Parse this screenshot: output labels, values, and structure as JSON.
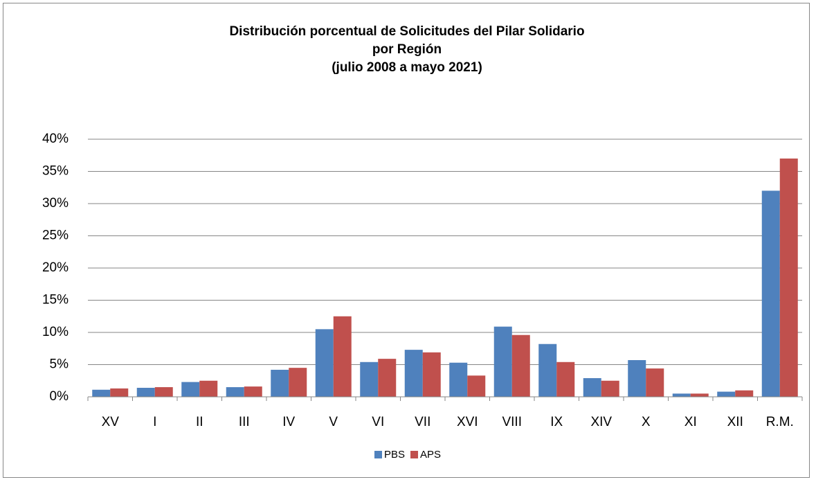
{
  "chart_data": {
    "type": "bar",
    "title": [
      "Distribución porcentual de Solicitudes del Pilar Solidario",
      "por Región",
      "(julio 2008 a mayo 2021)"
    ],
    "categories": [
      "XV",
      "I",
      "II",
      "III",
      "IV",
      "V",
      "VI",
      "VII",
      "XVI",
      "VIII",
      "IX",
      "XIV",
      "X",
      "XI",
      "XII",
      "R.M."
    ],
    "series": [
      {
        "name": "PBS",
        "color": "#4f81bd",
        "values": [
          1.1,
          1.4,
          2.3,
          1.5,
          4.2,
          10.5,
          5.4,
          7.3,
          5.3,
          10.9,
          8.2,
          2.9,
          5.7,
          0.5,
          0.8,
          32.0
        ]
      },
      {
        "name": "APS",
        "color": "#c0504d",
        "values": [
          1.3,
          1.5,
          2.5,
          1.6,
          4.5,
          12.5,
          5.9,
          6.9,
          3.3,
          9.6,
          5.4,
          2.5,
          4.4,
          0.5,
          1.0,
          37.0
        ]
      }
    ],
    "ylim": [
      0,
      40
    ],
    "yticks": [
      {
        "value": 0,
        "label": "0%"
      },
      {
        "value": 5,
        "label": "5%"
      },
      {
        "value": 10,
        "label": "10%"
      },
      {
        "value": 15,
        "label": "15%"
      },
      {
        "value": 20,
        "label": "20%"
      },
      {
        "value": 25,
        "label": "25%"
      },
      {
        "value": 30,
        "label": "30%"
      },
      {
        "value": 35,
        "label": "35%"
      },
      {
        "value": 40,
        "label": "40%"
      }
    ],
    "grid": true,
    "legend": "bottom"
  }
}
